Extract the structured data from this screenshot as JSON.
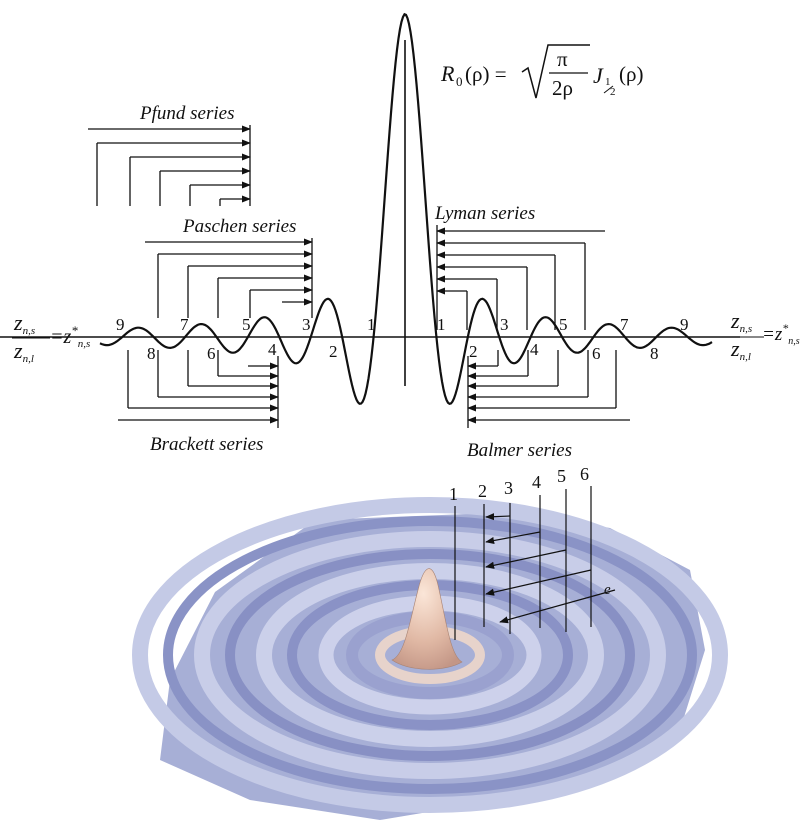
{
  "formula": {
    "lhs_symbol": "R",
    "lhs_subscript": "0",
    "lhs_arg": "(ρ) =",
    "sqrt_numerator": "π",
    "sqrt_denominator": "2ρ",
    "bessel_symbol": "J",
    "bessel_order_num": "1",
    "bessel_order_den": "2",
    "bessel_arg": "(ρ)"
  },
  "series_labels": {
    "pfund": "Pfund series",
    "paschen": "Paschen series",
    "lyman": "Lyman series",
    "brackett": "Brackett series",
    "balmer": "Balmer series"
  },
  "zero_labels_left": [
    "9",
    "8",
    "7",
    "6",
    "5",
    "4",
    "3",
    "2",
    "1"
  ],
  "zero_labels_right": [
    "1",
    "2",
    "3",
    "4",
    "5",
    "6",
    "7",
    "8",
    "9"
  ],
  "axis_label_left": {
    "top_letter": "z",
    "top_sub": "n,s",
    "mid": "=z",
    "mid_star": "*",
    "mid_sub": "n,s",
    "bottom_letter": "z",
    "bottom_sub": "n,l"
  },
  "axis_label_right": {
    "top_letter": "z",
    "top_sub": "n,s",
    "mid": "=z",
    "mid_star": "*",
    "mid_sub": "n,s",
    "bottom_letter": "z",
    "bottom_sub": "n,l"
  },
  "ring_labels": [
    "1",
    "2",
    "3",
    "4",
    "5",
    "6"
  ],
  "electron_label": "e",
  "colors": {
    "ink": "#111111",
    "surface_light": "#c9cfe8",
    "surface_mid": "#a4abd3",
    "surface_shadow": "#7d86bb",
    "peak": "#e4c2b0"
  }
}
